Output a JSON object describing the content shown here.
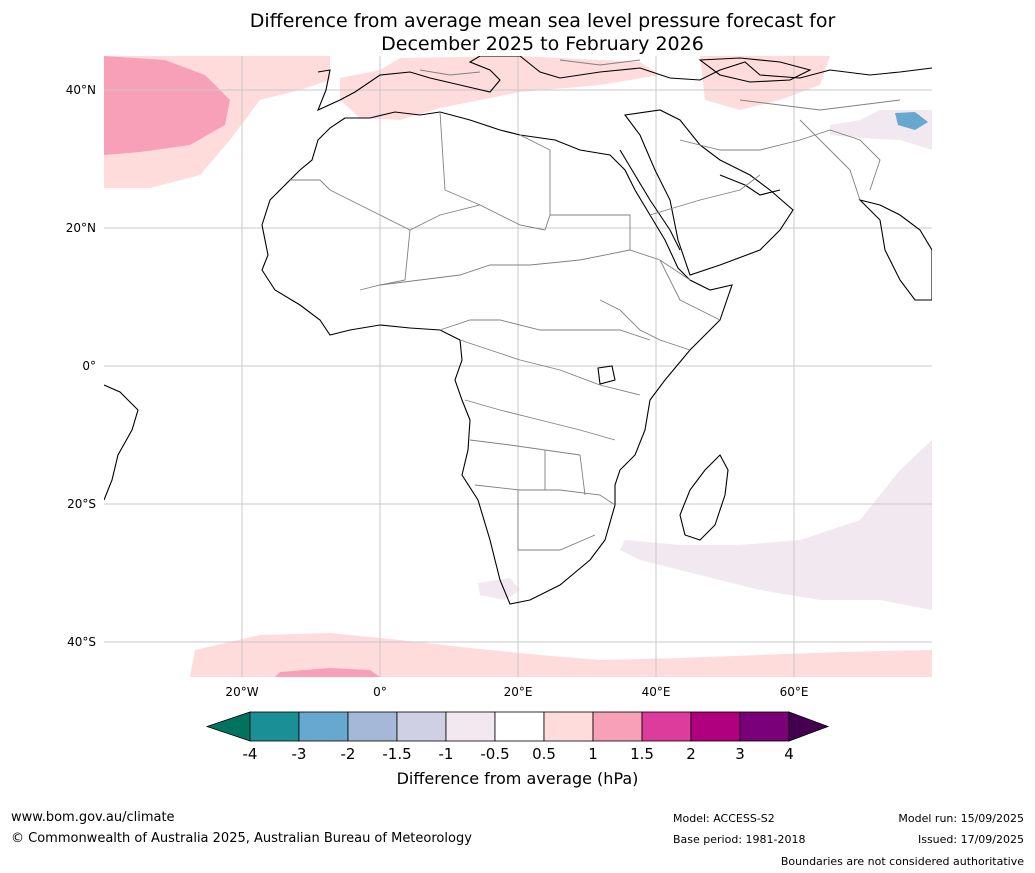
{
  "title": {
    "line1": "Difference from average mean sea level pressure forecast for",
    "line2": "December 2025 to February 2026"
  },
  "axes": {
    "lat_labels": [
      "40°N",
      "20°N",
      "0°",
      "20°S",
      "40°S"
    ],
    "lon_labels": [
      "20°W",
      "0°",
      "20°E",
      "40°E",
      "60°E"
    ]
  },
  "colorbar": {
    "ticks": [
      "-4",
      "-3",
      "-2",
      "-1.5",
      "-1",
      "-0.5",
      "0.5",
      "1",
      "1.5",
      "2",
      "3",
      "4"
    ],
    "colors": [
      "#00735e",
      "#1a8f96",
      "#67a8d0",
      "#a6b8d8",
      "#cfd0e4",
      "#f1e8f0",
      "#ffffff",
      "#ffdcdc",
      "#f7a0b8",
      "#dd3c9c",
      "#b0007f",
      "#7a007a",
      "#44004f"
    ],
    "title": "Difference from average (hPa)"
  },
  "footer": {
    "url": "www.bom.gov.au/climate",
    "copyright": "© Commonwealth of Australia 2025, Australian Bureau of Meteorology",
    "model": "Model: ACCESS-S2",
    "base_period": "Base period: 1981-2018",
    "model_run": "Model run: 15/09/2025",
    "issued": "Issued: 17/09/2025",
    "disclaimer": "Boundaries are not considered authoritative"
  }
}
